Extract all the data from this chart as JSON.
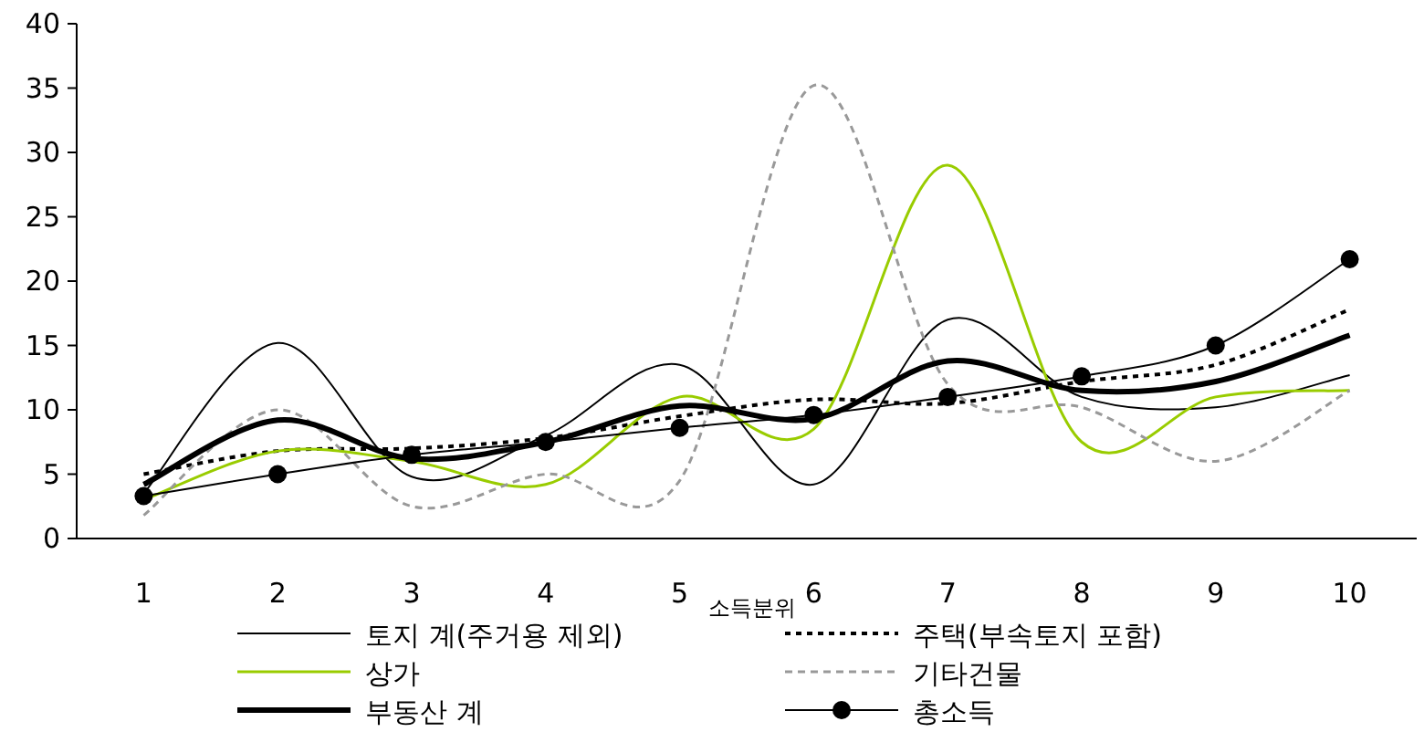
{
  "chart_data": {
    "type": "line",
    "xlabel": "소득분위",
    "categories": [
      "1",
      "2",
      "3",
      "4",
      "5",
      "6",
      "7",
      "8",
      "9",
      "10"
    ],
    "ylim": [
      0,
      40
    ],
    "yticks": [
      0,
      5,
      10,
      15,
      20,
      25,
      30,
      35,
      40
    ],
    "grid": false,
    "legend": "bottom",
    "series": [
      {
        "name": "토지 계(주거용 제외)",
        "color": "#000000",
        "line_style": "solid",
        "marker": "none",
        "values": [
          3.5,
          15.2,
          4.8,
          8,
          13.5,
          4.2,
          17,
          11,
          10.2,
          12.7
        ]
      },
      {
        "name": "주택(부속토지 포함)",
        "color": "#000000",
        "line_style": "dotted",
        "marker": "none",
        "values": [
          5,
          6.8,
          7,
          7.8,
          9.5,
          10.8,
          10.5,
          12.2,
          13.5,
          17.8
        ]
      },
      {
        "name": "상가",
        "color": "#99cc00",
        "line_style": "solid",
        "marker": "none",
        "values": [
          3,
          6.8,
          6,
          4.2,
          11,
          8.5,
          29,
          7.5,
          11,
          11.5
        ]
      },
      {
        "name": "기타건물",
        "color": "#999999",
        "line_style": "dashed",
        "marker": "none",
        "values": [
          1.8,
          10,
          2.5,
          5,
          4.5,
          35.2,
          12,
          10.2,
          6,
          11.5
        ]
      },
      {
        "name": "부동산 계",
        "color": "#000000",
        "line_style": "solid",
        "marker": "none",
        "values": [
          4.2,
          9.2,
          6.2,
          7.5,
          10.3,
          9.3,
          13.8,
          11.5,
          12.2,
          15.8
        ]
      },
      {
        "name": "총소득",
        "color": "#000000",
        "line_style": "solid",
        "marker": "circle",
        "values": [
          3.3,
          5,
          6.5,
          7.5,
          8.6,
          9.6,
          11,
          12.6,
          15,
          21.7
        ]
      }
    ]
  }
}
